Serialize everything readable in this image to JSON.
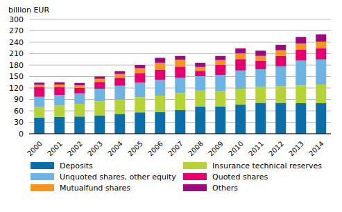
{
  "chart_data": {
    "type": "bar",
    "stacked": true,
    "y_label": "billion EUR",
    "categories": [
      "2000",
      "2001",
      "2002",
      "2003",
      "2004",
      "2005",
      "2006",
      "2007",
      "2008",
      "2009",
      "2010",
      "2011",
      "2012",
      "2013",
      "2014"
    ],
    "series": [
      {
        "name": "Deposits",
        "color": "#0a6ea8",
        "values": [
          42,
          44,
          45,
          48,
          52,
          56,
          57,
          62,
          71,
          72,
          77,
          81,
          81,
          80,
          80
        ]
      },
      {
        "name": "Insurance technical reserves",
        "color": "#b5d334",
        "values": [
          28,
          30,
          33,
          37,
          38,
          40,
          43,
          45,
          42,
          40,
          41,
          42,
          44,
          47,
          49
        ]
      },
      {
        "name": "Unquoted shares, other equity",
        "color": "#6cb4e4",
        "values": [
          27,
          28,
          28,
          33,
          36,
          38,
          42,
          40,
          38,
          42,
          48,
          46,
          52,
          65,
          66
        ]
      },
      {
        "name": "Quoted shares",
        "color": "#e5006d",
        "values": [
          25,
          20,
          14,
          18,
          21,
          24,
          26,
          29,
          14,
          26,
          30,
          23,
          27,
          28,
          29
        ]
      },
      {
        "name": "Mutualfund shares",
        "color": "#f7941d",
        "values": [
          6,
          7,
          7,
          8,
          10,
          14,
          18,
          18,
          10,
          13,
          15,
          12,
          15,
          17,
          18
        ]
      },
      {
        "name": "Others",
        "color": "#9c0a7d",
        "values": [
          6,
          6,
          6,
          6,
          7,
          8,
          13,
          10,
          11,
          11,
          13,
          14,
          14,
          17,
          19
        ]
      }
    ],
    "ylim": [
      0,
      300
    ],
    "yticks": [
      0,
      30,
      60,
      90,
      120,
      150,
      180,
      210,
      240,
      270,
      300
    ],
    "grid": true,
    "legend": "bottom"
  }
}
